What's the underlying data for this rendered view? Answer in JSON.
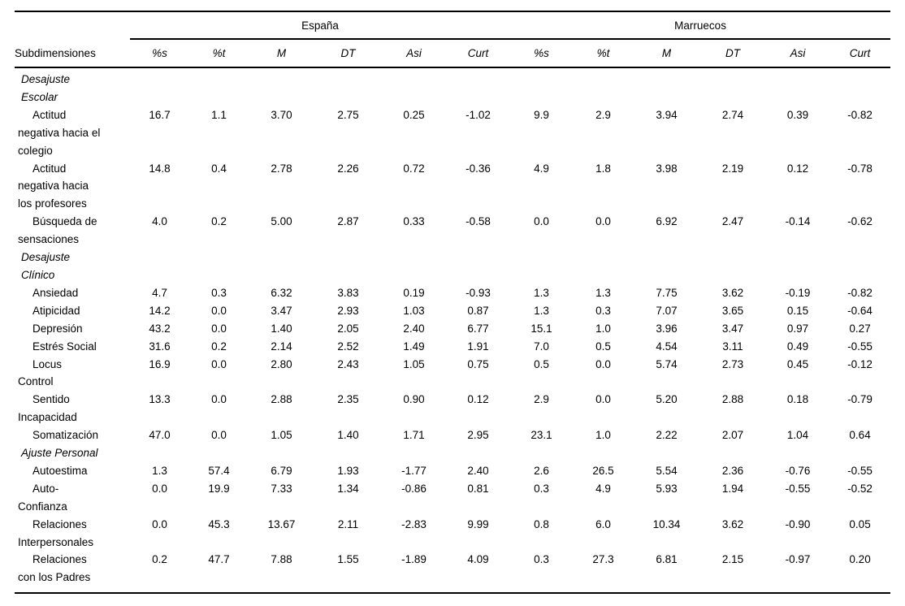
{
  "page": {
    "background_color": "#ffffff",
    "text_color": "#000000",
    "rule_color": "#000000"
  },
  "table": {
    "stub_header": "Subdimensiones",
    "groups": [
      {
        "label": "España"
      },
      {
        "label": "Marruecos"
      }
    ],
    "col_headers": [
      "%s",
      "%t",
      "M",
      "DT",
      "Asi",
      "Curt",
      "%s",
      "%t",
      "M",
      "DT",
      "Asi",
      "Curt"
    ],
    "rows": [
      {
        "type": "section",
        "label": "Desajuste Escolar",
        "label_lines": [
          "Desajuste",
          "Escolar"
        ]
      },
      {
        "type": "item",
        "label": "Actitud negativa hacia el colegio",
        "label_lines": [
          "Actitud",
          "negativa hacia el",
          "colegio"
        ],
        "values": [
          "16.7",
          "1.1",
          "3.70",
          "2.75",
          "0.25",
          "-1.02",
          "9.9",
          "2.9",
          "3.94",
          "2.74",
          "0.39",
          "-0.82"
        ]
      },
      {
        "type": "item",
        "label": "Actitud negativa hacia los profesores",
        "label_lines": [
          "Actitud",
          "negativa hacia",
          "los profesores"
        ],
        "values": [
          "14.8",
          "0.4",
          "2.78",
          "2.26",
          "0.72",
          "-0.36",
          "4.9",
          "1.8",
          "3.98",
          "2.19",
          "0.12",
          "-0.78"
        ]
      },
      {
        "type": "item",
        "label": "Búsqueda de sensaciones",
        "label_lines": [
          "Búsqueda de",
          "sensaciones"
        ],
        "values": [
          "4.0",
          "0.2",
          "5.00",
          "2.87",
          "0.33",
          "-0.58",
          "0.0",
          "0.0",
          "6.92",
          "2.47",
          "-0.14",
          "-0.62"
        ]
      },
      {
        "type": "section",
        "label": "Desajuste Clínico",
        "label_lines": [
          "Desajuste",
          "Clínico"
        ]
      },
      {
        "type": "item",
        "label": "Ansiedad",
        "label_lines": [
          "Ansiedad"
        ],
        "values": [
          "4.7",
          "0.3",
          "6.32",
          "3.83",
          "0.19",
          "-0.93",
          "1.3",
          "1.3",
          "7.75",
          "3.62",
          "-0.19",
          "-0.82"
        ]
      },
      {
        "type": "item",
        "label": "Atipicidad",
        "label_lines": [
          "Atipicidad"
        ],
        "values": [
          "14.2",
          "0.0",
          "3.47",
          "2.93",
          "1.03",
          "0.87",
          "1.3",
          "0.3",
          "7.07",
          "3.65",
          "0.15",
          "-0.64"
        ]
      },
      {
        "type": "item",
        "label": "Depresión",
        "label_lines": [
          "Depresión"
        ],
        "values": [
          "43.2",
          "0.0",
          "1.40",
          "2.05",
          "2.40",
          "6.77",
          "15.1",
          "1.0",
          "3.96",
          "3.47",
          "0.97",
          "0.27"
        ]
      },
      {
        "type": "item",
        "label": "Estrés Social",
        "label_lines": [
          "Estrés Social"
        ],
        "values": [
          "31.6",
          "0.2",
          "2.14",
          "2.52",
          "1.49",
          "1.91",
          "7.0",
          "0.5",
          "4.54",
          "3.11",
          "0.49",
          "-0.55"
        ]
      },
      {
        "type": "item",
        "label": "Locus Control",
        "label_lines": [
          "Locus",
          "Control"
        ],
        "values": [
          "16.9",
          "0.0",
          "2.80",
          "2.43",
          "1.05",
          "0.75",
          "0.5",
          "0.0",
          "5.74",
          "2.73",
          "0.45",
          "-0.12"
        ]
      },
      {
        "type": "item",
        "label": "Sentido Incapacidad",
        "label_lines": [
          "Sentido",
          "Incapacidad"
        ],
        "values": [
          "13.3",
          "0.0",
          "2.88",
          "2.35",
          "0.90",
          "0.12",
          "2.9",
          "0.0",
          "5.20",
          "2.88",
          "0.18",
          "-0.79"
        ]
      },
      {
        "type": "item",
        "label": "Somatización",
        "label_lines": [
          "Somatización"
        ],
        "values": [
          "47.0",
          "0.0",
          "1.05",
          "1.40",
          "1.71",
          "2.95",
          "23.1",
          "1.0",
          "2.22",
          "2.07",
          "1.04",
          "0.64"
        ]
      },
      {
        "type": "section",
        "label": "Ajuste Personal",
        "label_lines": [
          "Ajuste Personal"
        ]
      },
      {
        "type": "item",
        "label": "Autoestima",
        "label_lines": [
          "Autoestima"
        ],
        "values": [
          "1.3",
          "57.4",
          "6.79",
          "1.93",
          "-1.77",
          "2.40",
          "2.6",
          "26.5",
          "5.54",
          "2.36",
          "-0.76",
          "-0.55"
        ]
      },
      {
        "type": "item",
        "label": "Auto-Confianza",
        "label_lines": [
          "Auto-",
          "Confianza"
        ],
        "values": [
          "0.0",
          "19.9",
          "7.33",
          "1.34",
          "-0.86",
          "0.81",
          "0.3",
          "4.9",
          "5.93",
          "1.94",
          "-0.55",
          "-0.52"
        ]
      },
      {
        "type": "item",
        "label": "Relaciones Interpersonales",
        "label_lines": [
          "Relaciones",
          "Interpersonales"
        ],
        "values": [
          "0.0",
          "45.3",
          "13.67",
          "2.11",
          "-2.83",
          "9.99",
          "0.8",
          "6.0",
          "10.34",
          "3.62",
          "-0.90",
          "0.05"
        ]
      },
      {
        "type": "item",
        "label": "Relaciones con los Padres",
        "label_lines": [
          "Relaciones",
          "con los Padres"
        ],
        "values": [
          "0.2",
          "47.7",
          "7.88",
          "1.55",
          "-1.89",
          "4.09",
          "0.3",
          "27.3",
          "6.81",
          "2.15",
          "-0.97",
          "0.20"
        ]
      }
    ]
  }
}
